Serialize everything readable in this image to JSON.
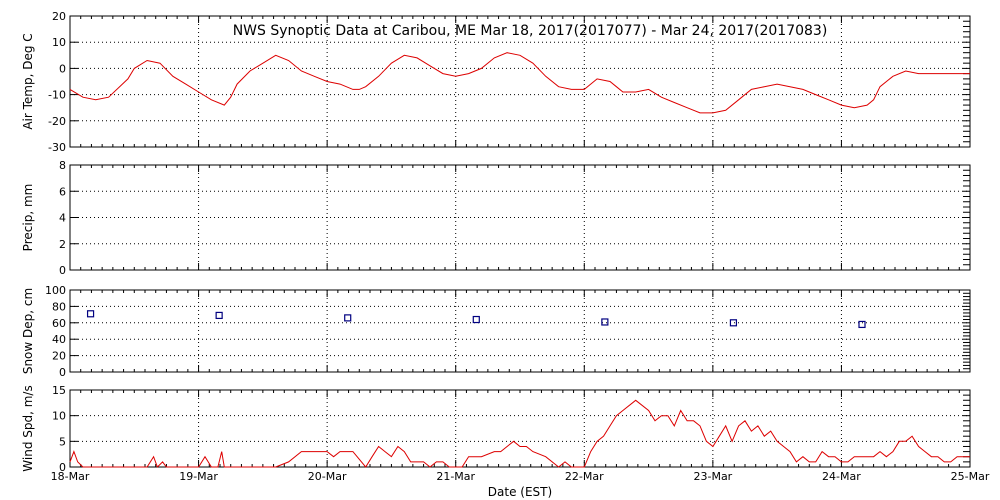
{
  "figure_title": "NWS Synoptic Data at Caribou, ME   Mar 18, 2017(2017077) - Mar 24, 2017(2017083)",
  "x_axis_label": "Date (EST)",
  "colors": {
    "line": "#dd0000",
    "marker": "#000080",
    "axes": "#000000"
  },
  "chart_data": [
    {
      "type": "line",
      "panel": "air-temp",
      "ylabel": "Air Temp, Deg C",
      "ylim": [
        -30,
        20
      ],
      "yticks": [
        -30,
        -20,
        -10,
        0,
        10,
        20
      ],
      "grid": true,
      "series": [
        {
          "x": [
            0,
            0.1,
            0.2,
            0.3,
            0.45,
            0.5,
            0.6,
            0.7,
            0.8,
            0.9,
            1,
            1.1,
            1.2,
            1.25,
            1.3,
            1.4,
            1.5,
            1.6,
            1.7,
            1.8,
            1.9,
            2,
            2.1,
            2.2,
            2.25,
            2.3,
            2.4,
            2.5,
            2.6,
            2.7,
            2.8,
            2.9,
            3,
            3.1,
            3.2,
            3.3,
            3.4,
            3.5,
            3.6,
            3.7,
            3.8,
            3.9,
            4,
            4.1,
            4.2,
            4.25,
            4.3,
            4.4,
            4.5,
            4.6,
            4.7,
            4.8,
            4.9,
            5,
            5.1,
            5.2,
            5.3,
            5.4,
            5.5,
            5.6,
            5.7,
            5.8,
            5.9,
            6,
            6.1,
            6.2,
            6.25,
            6.3,
            6.4,
            6.5,
            6.6,
            6.7,
            6.8,
            6.9,
            7
          ],
          "values": [
            -8,
            -11,
            -12,
            -11,
            -4,
            0,
            3,
            2,
            -3,
            -6,
            -9,
            -12,
            -14,
            -11,
            -6,
            -1,
            2,
            5,
            3,
            -1,
            -3,
            -5,
            -6,
            -8,
            -8,
            -7,
            -3,
            2,
            5,
            4,
            1,
            -2,
            -3,
            -2,
            0,
            4,
            6,
            5,
            2,
            -3,
            -7,
            -8,
            -8,
            -4,
            -5,
            -7,
            -9,
            -9,
            -8,
            -11,
            -13,
            -15,
            -17,
            -17,
            -16,
            -12,
            -8,
            -7,
            -6,
            -7,
            -8,
            -10,
            -12,
            -14,
            -15,
            -14,
            -12,
            -7,
            -3,
            -1,
            -2,
            -2,
            -2,
            -2,
            -2
          ]
        }
      ]
    },
    {
      "type": "line",
      "panel": "precip",
      "ylabel": "Precip, mm",
      "ylim": [
        0,
        8
      ],
      "yticks": [
        0,
        2,
        4,
        6,
        8
      ],
      "grid": true,
      "series": []
    },
    {
      "type": "scatter",
      "panel": "snow-depth",
      "ylabel": "Snow Dep, cm",
      "ylim": [
        0,
        100
      ],
      "yticks": [
        0,
        20,
        40,
        60,
        80,
        100
      ],
      "grid": true,
      "series": [
        {
          "x": [
            0.16,
            1.16,
            2.16,
            3.16,
            4.16,
            5.16,
            6.16
          ],
          "values": [
            71,
            69,
            66,
            64,
            61,
            60,
            58
          ]
        }
      ]
    },
    {
      "type": "line",
      "panel": "wind-speed",
      "ylabel": "Wind Spd, m/s",
      "ylim": [
        0,
        15
      ],
      "yticks": [
        0,
        5,
        10,
        15
      ],
      "grid": true,
      "series": [
        {
          "x": [
            0,
            0.03,
            0.06,
            0.1,
            0.14,
            0.2,
            0.4,
            0.6,
            0.65,
            0.68,
            0.72,
            0.75,
            0.8,
            1,
            1.05,
            1.1,
            1.15,
            1.18,
            1.2,
            1.22,
            1.25,
            1.3,
            1.5,
            1.6,
            1.7,
            1.8,
            1.9,
            2,
            2.05,
            2.1,
            2.15,
            2.2,
            2.3,
            2.35,
            2.4,
            2.45,
            2.5,
            2.55,
            2.6,
            2.65,
            2.7,
            2.75,
            2.8,
            2.85,
            2.9,
            2.95,
            3,
            3.05,
            3.1,
            3.2,
            3.3,
            3.35,
            3.4,
            3.45,
            3.5,
            3.55,
            3.6,
            3.7,
            3.8,
            3.85,
            3.9,
            4,
            4.05,
            4.1,
            4.15,
            4.2,
            4.25,
            4.3,
            4.4,
            4.5,
            4.55,
            4.6,
            4.65,
            4.7,
            4.75,
            4.8,
            4.85,
            4.9,
            4.95,
            5,
            5.05,
            5.1,
            5.15,
            5.2,
            5.25,
            5.3,
            5.35,
            5.4,
            5.45,
            5.5,
            5.55,
            5.6,
            5.65,
            5.7,
            5.75,
            5.8,
            5.85,
            5.9,
            5.95,
            6,
            6.05,
            6.1,
            6.15,
            6.2,
            6.25,
            6.3,
            6.35,
            6.4,
            6.45,
            6.5,
            6.55,
            6.6,
            6.65,
            6.7,
            6.75,
            6.8,
            6.85,
            6.9,
            6.95,
            7
          ],
          "values": [
            1,
            3,
            1,
            0,
            0,
            0,
            0,
            0,
            2,
            0,
            1,
            0,
            0,
            0,
            2,
            0,
            0,
            3,
            0,
            0,
            0,
            0,
            0,
            0,
            1,
            3,
            3,
            3,
            2,
            3,
            3,
            3,
            0,
            2,
            4,
            3,
            2,
            4,
            3,
            1,
            1,
            1,
            0,
            1,
            1,
            0,
            0,
            0,
            2,
            2,
            3,
            3,
            4,
            5,
            4,
            4,
            3,
            2,
            0,
            1,
            0,
            0,
            3,
            5,
            6,
            8,
            10,
            11,
            13,
            11,
            9,
            10,
            10,
            8,
            11,
            9,
            9,
            8,
            5,
            4,
            6,
            8,
            5,
            8,
            9,
            7,
            8,
            6,
            7,
            5,
            4,
            3,
            1,
            2,
            1,
            1,
            3,
            2,
            2,
            1,
            1,
            2,
            2,
            2,
            2,
            3,
            2,
            3,
            5,
            5,
            6,
            4,
            3,
            2,
            2,
            1,
            1,
            2,
            2,
            2
          ]
        }
      ]
    }
  ],
  "x_axis": {
    "range": [
      0,
      7
    ],
    "tick_labels": [
      "18-Mar",
      "19-Mar",
      "20-Mar",
      "21-Mar",
      "22-Mar",
      "23-Mar",
      "24-Mar",
      "25-Mar"
    ]
  }
}
